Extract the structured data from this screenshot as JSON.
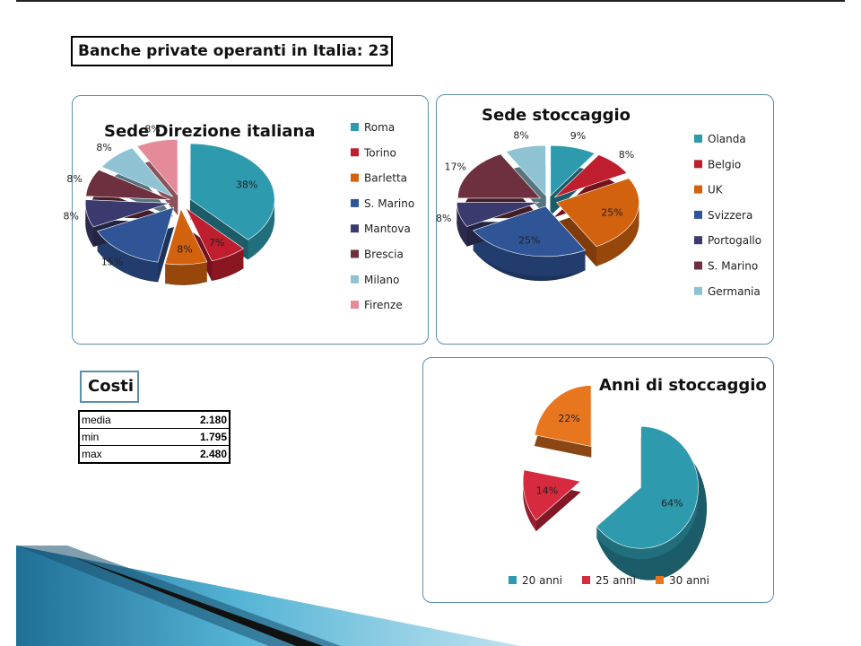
{
  "slide_title": "Banche private operanti in Italia: 23",
  "costi": {
    "title": "Costi",
    "rows": [
      {
        "label": "media",
        "value": "2.180"
      },
      {
        "label": "min",
        "value": "1.795"
      },
      {
        "label": "max",
        "value": "2.480"
      }
    ]
  },
  "chart_data": [
    {
      "type": "pie",
      "title": "Sede Direzione italiana",
      "legend_position": "right",
      "categories": [
        "Roma",
        "Torino",
        "Barletta",
        "S. Marino",
        "Mantova",
        "Brescia",
        "Milano",
        "Firenze"
      ],
      "values": [
        38,
        7,
        8,
        15,
        8,
        8,
        8,
        8
      ],
      "labels": [
        "38%",
        "7%",
        "8%",
        "15%",
        "8%",
        "8%",
        "8%",
        "8%"
      ],
      "colors": [
        "#2e9aae",
        "#be1e2d",
        "#d3620f",
        "#2f5597",
        "#3b3a6e",
        "#6e2f3f",
        "#8fc3d4",
        "#e58a98"
      ]
    },
    {
      "type": "pie",
      "title": "Sede stoccaggio",
      "legend_position": "right",
      "categories": [
        "Olanda",
        "Belgio",
        "UK",
        "Svizzera",
        "Portogallo",
        "S. Marino",
        "Germania"
      ],
      "values": [
        9,
        8,
        25,
        25,
        8,
        17,
        8
      ],
      "labels": [
        "9%",
        "8%",
        "25%",
        "25%",
        "8%",
        "17%",
        "8%"
      ],
      "colors": [
        "#2e9aae",
        "#be1e2d",
        "#d3620f",
        "#2f5597",
        "#3b3a6e",
        "#6e2f3f",
        "#8fc3d4"
      ]
    },
    {
      "type": "pie",
      "title": "Anni di stoccaggio",
      "legend_position": "bottom",
      "categories": [
        "20 anni",
        "25 anni",
        "30 anni"
      ],
      "values": [
        64,
        14,
        22
      ],
      "labels": [
        "64%",
        "14%",
        "22%"
      ],
      "colors": [
        "#2e9aae",
        "#d62a3e",
        "#e8761f"
      ]
    }
  ]
}
